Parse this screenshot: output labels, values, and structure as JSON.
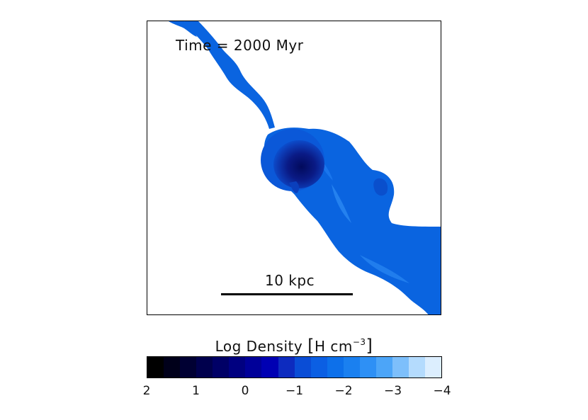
{
  "panel": {
    "time_label": "Time = 2000 Myr",
    "scale_label": "10 kpc"
  },
  "colorbar": {
    "title_prefix": "Log Density ",
    "bracket_open": "[",
    "unit_text": "H cm",
    "unit_exponent": "−3",
    "bracket_close": "]",
    "ticks": [
      "2",
      "1",
      "0",
      "−1",
      "−2",
      "−3",
      "−4"
    ],
    "colors": [
      "#000000",
      "#00001a",
      "#000033",
      "#00004d",
      "#000066",
      "#000080",
      "#000099",
      "#0000b3",
      "#0d2bbf",
      "#0a4dd6",
      "#0b5fe3",
      "#0d70ea",
      "#1a80f0",
      "#2e90f5",
      "#4ca5f8",
      "#7dbffb",
      "#b4dbfd",
      "#dceefe"
    ]
  },
  "colors": {
    "gas_main": "#0a64e0",
    "gas_light": "#1e7bf0",
    "gas_dark": "#0a1f8a",
    "gas_core": "#020a5c"
  }
}
